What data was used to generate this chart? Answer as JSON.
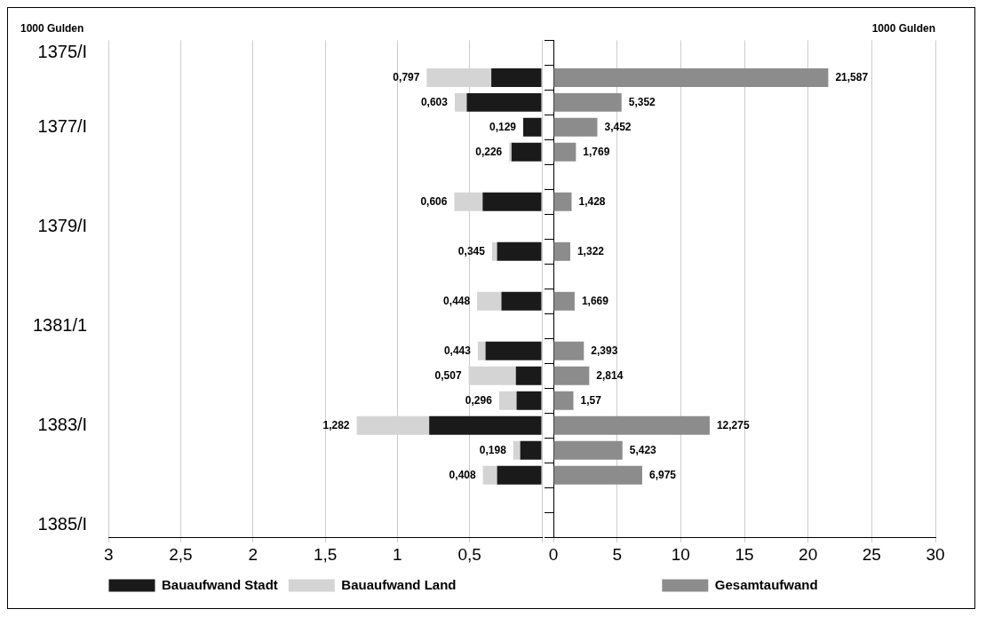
{
  "chart_data": [
    {
      "type": "bar",
      "orientation": "horizontal",
      "stacked": true,
      "xlabel": "1000 Gulden",
      "categories": [
        "1375/I",
        null,
        null,
        "1377/I",
        null,
        null,
        null,
        "1379/I",
        null,
        null,
        null,
        "1381/1",
        null,
        null,
        null,
        "1383/I",
        null,
        null,
        null,
        "1385/I"
      ],
      "series": [
        {
          "name": "Bauaufwand Stadt",
          "color": "#1a1a1a",
          "values": [
            null,
            0.35,
            0.52,
            0.129,
            0.21,
            null,
            0.41,
            null,
            0.31,
            null,
            0.28,
            null,
            0.39,
            0.18,
            0.175,
            0.78,
            0.15,
            0.31,
            null,
            null
          ]
        },
        {
          "name": "Bauaufwand Land",
          "color": "#d4d4d4",
          "values": [
            null,
            0.447,
            0.083,
            0,
            0.016,
            null,
            0.196,
            null,
            0.035,
            null,
            0.168,
            null,
            0.053,
            0.327,
            0.121,
            0.502,
            0.048,
            0.098,
            null,
            null
          ]
        }
      ],
      "totals": [
        null,
        "0,797",
        "0,603",
        "0,129",
        "0,226",
        null,
        "0,606",
        null,
        "0,345",
        null,
        "0,448",
        null,
        "0,443",
        "0,507",
        "0,296",
        "1,282",
        "0,198",
        "0,408",
        null,
        null
      ],
      "xlim": [
        3,
        0
      ],
      "xticks": [
        3,
        {
          "value": 2.5,
          "label": "2,5"
        },
        2,
        {
          "value": 1.5,
          "label": "1,5"
        },
        1,
        {
          "value": 0.5,
          "label": "0,5"
        },
        {
          "value": 0,
          "label": null
        }
      ],
      "grid": "x",
      "legend": "bottom"
    },
    {
      "type": "bar",
      "orientation": "horizontal",
      "xlabel": "1000 Gulden",
      "categories": [
        null,
        null,
        null,
        null,
        null,
        null,
        null,
        null,
        null,
        null,
        null,
        null,
        null,
        null,
        null,
        null,
        null,
        null,
        null,
        null
      ],
      "series": [
        {
          "name": "Gesamtaufwand",
          "color": "#8c8c8c",
          "values": [
            null,
            21.587,
            5.352,
            3.452,
            1.769,
            null,
            1.428,
            null,
            1.322,
            null,
            1.669,
            null,
            2.393,
            2.814,
            1.57,
            12.275,
            5.423,
            6.975,
            null,
            null
          ],
          "value_labels": [
            null,
            "21,587",
            "5,352",
            "3,452",
            "1,769",
            null,
            "1,428",
            null,
            "1,322",
            null,
            "1,669",
            null,
            "2,393",
            "2,814",
            "1,57",
            "12,275",
            "5,423",
            "6,975",
            null,
            null
          ]
        }
      ],
      "xlim": [
        0,
        30
      ],
      "xticks": [
        0,
        5,
        10,
        15,
        20,
        25,
        30
      ],
      "grid": "x",
      "legend": "bottom"
    }
  ]
}
